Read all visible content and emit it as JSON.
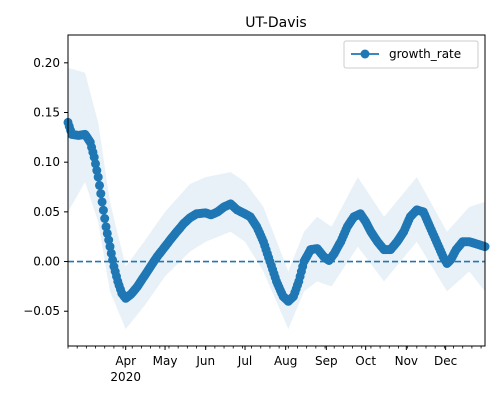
{
  "chart_data": {
    "type": "line",
    "title": "UT-Davis",
    "xlabel": "",
    "ylabel": "",
    "x_range": [
      "2020-02-17",
      "2020-12-31"
    ],
    "ylim": [
      -0.085,
      0.228
    ],
    "x_ticks": [
      {
        "date": "2020-04-01",
        "label": "Apr",
        "sublabel": "2020"
      },
      {
        "date": "2020-05-01",
        "label": "May"
      },
      {
        "date": "2020-06-01",
        "label": "Jun"
      },
      {
        "date": "2020-07-01",
        "label": "Jul"
      },
      {
        "date": "2020-08-01",
        "label": "Aug"
      },
      {
        "date": "2020-09-01",
        "label": "Sep"
      },
      {
        "date": "2020-10-01",
        "label": "Oct"
      },
      {
        "date": "2020-11-01",
        "label": "Nov"
      },
      {
        "date": "2020-12-01",
        "label": "Dec"
      }
    ],
    "y_ticks": [
      {
        "value": 0.2,
        "label": "0.20"
      },
      {
        "value": 0.15,
        "label": "0.15"
      },
      {
        "value": 0.1,
        "label": "0.10"
      },
      {
        "value": 0.05,
        "label": "0.05"
      },
      {
        "value": 0.0,
        "label": "0.00"
      },
      {
        "value": -0.05,
        "label": "−0.05"
      }
    ],
    "reference_line": {
      "y": 0,
      "style": "dashed",
      "color": "#1f77b4"
    },
    "legend": {
      "position": "top-right",
      "entries": [
        {
          "label": "growth_rate"
        }
      ]
    },
    "series": [
      {
        "name": "growth_rate",
        "color": "#1f77b4",
        "band_color": "#1f77b4",
        "points": [
          [
            "2020-02-17",
            0.14
          ],
          [
            "2020-02-20",
            0.128
          ],
          [
            "2020-02-25",
            0.127
          ],
          [
            "2020-03-01",
            0.128
          ],
          [
            "2020-03-05",
            0.12
          ],
          [
            "2020-03-08",
            0.105
          ],
          [
            "2020-03-11",
            0.085
          ],
          [
            "2020-03-14",
            0.06
          ],
          [
            "2020-03-17",
            0.035
          ],
          [
            "2020-03-20",
            0.015
          ],
          [
            "2020-03-23",
            -0.005
          ],
          [
            "2020-03-26",
            -0.02
          ],
          [
            "2020-03-29",
            -0.032
          ],
          [
            "2020-04-01",
            -0.037
          ],
          [
            "2020-04-05",
            -0.033
          ],
          [
            "2020-04-10",
            -0.025
          ],
          [
            "2020-04-15",
            -0.015
          ],
          [
            "2020-04-20",
            -0.005
          ],
          [
            "2020-04-25",
            0.005
          ],
          [
            "2020-05-01",
            0.015
          ],
          [
            "2020-05-05",
            0.022
          ],
          [
            "2020-05-10",
            0.03
          ],
          [
            "2020-05-15",
            0.038
          ],
          [
            "2020-05-20",
            0.044
          ],
          [
            "2020-05-25",
            0.048
          ],
          [
            "2020-06-01",
            0.049
          ],
          [
            "2020-06-05",
            0.047
          ],
          [
            "2020-06-10",
            0.05
          ],
          [
            "2020-06-15",
            0.055
          ],
          [
            "2020-06-20",
            0.058
          ],
          [
            "2020-06-25",
            0.052
          ],
          [
            "2020-07-01",
            0.048
          ],
          [
            "2020-07-05",
            0.045
          ],
          [
            "2020-07-10",
            0.035
          ],
          [
            "2020-07-15",
            0.02
          ],
          [
            "2020-07-20",
            0.0
          ],
          [
            "2020-07-25",
            -0.02
          ],
          [
            "2020-07-30",
            -0.035
          ],
          [
            "2020-08-03",
            -0.04
          ],
          [
            "2020-08-07",
            -0.035
          ],
          [
            "2020-08-11",
            -0.02
          ],
          [
            "2020-08-15",
            0.0
          ],
          [
            "2020-08-20",
            0.012
          ],
          [
            "2020-08-25",
            0.013
          ],
          [
            "2020-08-30",
            0.005
          ],
          [
            "2020-09-03",
            0.001
          ],
          [
            "2020-09-07",
            0.008
          ],
          [
            "2020-09-12",
            0.02
          ],
          [
            "2020-09-17",
            0.035
          ],
          [
            "2020-09-22",
            0.045
          ],
          [
            "2020-09-27",
            0.048
          ],
          [
            "2020-10-01",
            0.04
          ],
          [
            "2020-10-05",
            0.03
          ],
          [
            "2020-10-10",
            0.02
          ],
          [
            "2020-10-15",
            0.012
          ],
          [
            "2020-10-20",
            0.012
          ],
          [
            "2020-10-25",
            0.02
          ],
          [
            "2020-10-30",
            0.03
          ],
          [
            "2020-11-04",
            0.045
          ],
          [
            "2020-11-09",
            0.052
          ],
          [
            "2020-11-14",
            0.05
          ],
          [
            "2020-11-19",
            0.035
          ],
          [
            "2020-11-24",
            0.02
          ],
          [
            "2020-11-29",
            0.005
          ],
          [
            "2020-12-02",
            -0.002
          ],
          [
            "2020-12-05",
            0.002
          ],
          [
            "2020-12-09",
            0.012
          ],
          [
            "2020-12-14",
            0.02
          ],
          [
            "2020-12-19",
            0.02
          ],
          [
            "2020-12-24",
            0.018
          ],
          [
            "2020-12-31",
            0.015
          ]
        ],
        "band": [
          [
            "2020-02-17",
            0.05,
            0.195
          ],
          [
            "2020-03-01",
            0.08,
            0.19
          ],
          [
            "2020-03-11",
            0.04,
            0.14
          ],
          [
            "2020-03-20",
            -0.03,
            0.06
          ],
          [
            "2020-04-01",
            -0.068,
            -0.005
          ],
          [
            "2020-04-15",
            -0.045,
            0.02
          ],
          [
            "2020-05-01",
            -0.015,
            0.05
          ],
          [
            "2020-05-20",
            0.01,
            0.078
          ],
          [
            "2020-06-01",
            0.02,
            0.085
          ],
          [
            "2020-06-20",
            0.03,
            0.09
          ],
          [
            "2020-07-01",
            0.02,
            0.08
          ],
          [
            "2020-07-15",
            -0.01,
            0.055
          ],
          [
            "2020-08-03",
            -0.068,
            -0.01
          ],
          [
            "2020-08-15",
            -0.03,
            0.03
          ],
          [
            "2020-08-25",
            -0.02,
            0.045
          ],
          [
            "2020-09-05",
            -0.025,
            0.035
          ],
          [
            "2020-09-25",
            0.015,
            0.085
          ],
          [
            "2020-10-15",
            -0.02,
            0.045
          ],
          [
            "2020-11-09",
            0.02,
            0.085
          ],
          [
            "2020-12-02",
            -0.03,
            0.03
          ],
          [
            "2020-12-19",
            -0.01,
            0.055
          ],
          [
            "2020-12-31",
            -0.03,
            0.06
          ]
        ]
      }
    ]
  }
}
